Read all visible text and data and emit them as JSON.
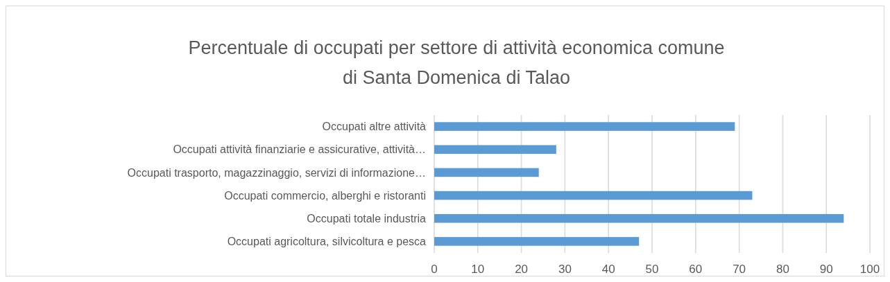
{
  "chart_data": {
    "type": "bar",
    "orientation": "horizontal",
    "title": "Percentuale di occupati per settore di attività economica comune\ndi Santa Domenica di Talao",
    "categories": [
      "Occupati altre attività",
      "Occupati attività finanziarie e assicurative, attività…",
      "Occupati trasporto, magazzinaggio, servizi di informazione…",
      "Occupati commercio, alberghi e ristoranti",
      "Occupati totale industria",
      "Occupati agricoltura, silvicoltura e pesca"
    ],
    "values": [
      69,
      28,
      24,
      73,
      94,
      47
    ],
    "color": "#5b9bd5",
    "xlim": [
      0,
      100
    ],
    "xticks": [
      0,
      10,
      20,
      30,
      40,
      50,
      60,
      70,
      80,
      90,
      100
    ],
    "grid": "x"
  }
}
